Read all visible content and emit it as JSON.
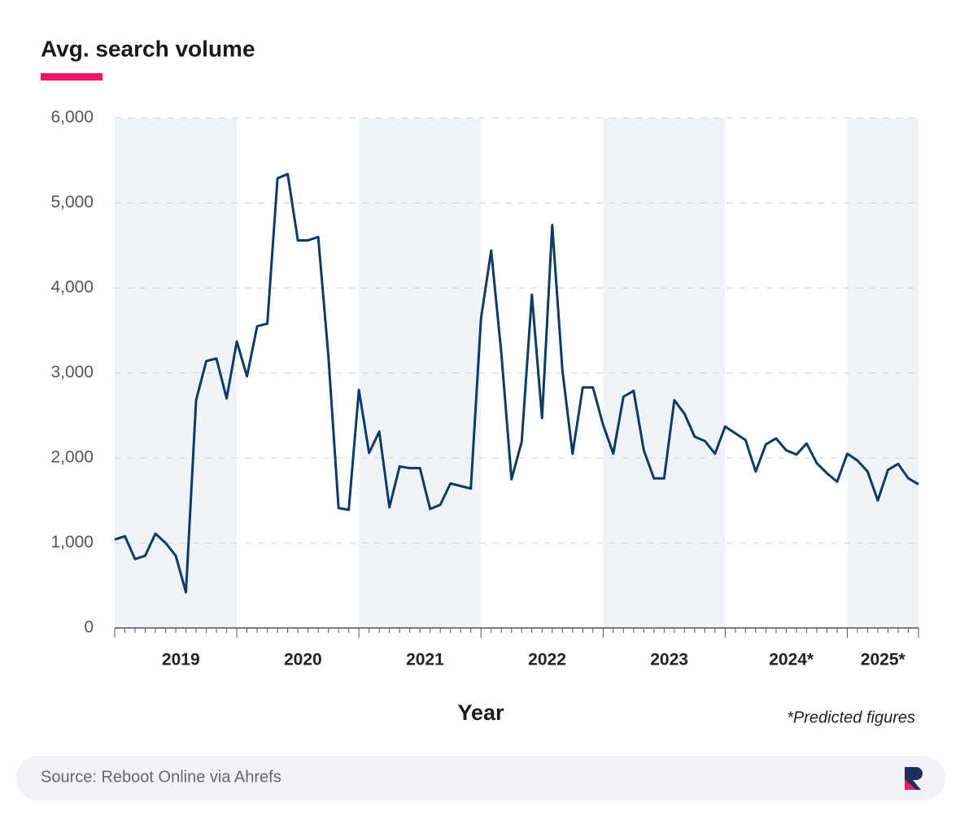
{
  "chart_data": {
    "type": "line",
    "title": "Avg. search volume",
    "x_label": "Year",
    "note": "*Predicted figures",
    "source": "Source: Reboot Online via Ahrefs",
    "categories": [
      null,
      null,
      null,
      null,
      null,
      null,
      "2019",
      null,
      null,
      null,
      null,
      null,
      null,
      null,
      null,
      null,
      null,
      null,
      "2020",
      null,
      null,
      null,
      null,
      null,
      null,
      null,
      null,
      null,
      null,
      null,
      "2021",
      null,
      null,
      null,
      null,
      null,
      null,
      null,
      null,
      null,
      null,
      null,
      "2022",
      null,
      null,
      null,
      null,
      null,
      null,
      null,
      null,
      null,
      null,
      null,
      "2023",
      null,
      null,
      null,
      null,
      null,
      null,
      null,
      null,
      null,
      null,
      null,
      "2024*",
      null,
      null,
      null,
      null,
      null,
      null,
      null,
      null,
      "2025*",
      null,
      null,
      null,
      null
    ],
    "series": [
      {
        "name": "Avg. search volume",
        "color": "#0d3a66",
        "values": [
          1040,
          1080,
          810,
          850,
          1110,
          1000,
          850,
          420,
          2680,
          3140,
          3170,
          2700,
          3370,
          2960,
          3550,
          3580,
          5290,
          5340,
          4560,
          4560,
          4600,
          3200,
          1410,
          1390,
          2800,
          2060,
          2310,
          1420,
          1900,
          1880,
          1880,
          1400,
          1450,
          1700,
          1670,
          1640,
          3640,
          4440,
          3230,
          1750,
          2190,
          3920,
          2470,
          4740,
          3030,
          2050,
          2830,
          2830,
          2390,
          2050,
          2720,
          2790,
          2090,
          1760,
          1760,
          2680,
          2520,
          2250,
          2200,
          2050,
          2370,
          2290,
          2210,
          1840,
          2160,
          2230,
          2090,
          2040,
          2170,
          1940,
          1820,
          1720,
          2050,
          1970,
          1840,
          1500,
          1860,
          1930,
          1760,
          1690
        ]
      }
    ],
    "ylim": [
      0,
      6000
    ],
    "yticks": [
      0,
      {
        "value": 1000,
        "label": "1,000"
      },
      {
        "value": 2000,
        "label": "2,000"
      },
      {
        "value": 3000,
        "label": "3,000"
      },
      {
        "value": 4000,
        "label": "4,000"
      },
      {
        "value": 5000,
        "label": "5,000"
      },
      {
        "value": 6000,
        "label": "6,000"
      }
    ],
    "grid": true
  }
}
